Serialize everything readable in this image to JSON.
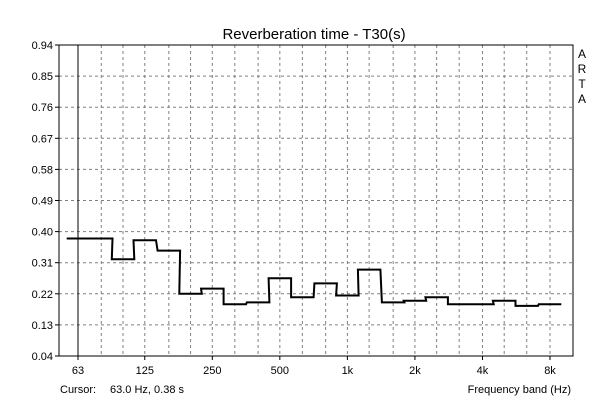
{
  "chart_data": {
    "type": "line",
    "title": "Reverberation time - T30(s)",
    "xlabel": "Frequency band (Hz)",
    "ylabel": "",
    "x_scale": "log",
    "y_ticks": [
      "0.94",
      "0.85",
      "0.76",
      "0.67",
      "0.58",
      "0.49",
      "0.40",
      "0.31",
      "0.22",
      "0.13",
      "0.04"
    ],
    "ylim": [
      0.04,
      0.94
    ],
    "x_ticks": [
      {
        "freq": 63,
        "label": "63"
      },
      {
        "freq": 125,
        "label": "125"
      },
      {
        "freq": 250,
        "label": "250"
      },
      {
        "freq": 500,
        "label": "500"
      },
      {
        "freq": 1000,
        "label": "1k"
      },
      {
        "freq": 2000,
        "label": "2k"
      },
      {
        "freq": 4000,
        "label": "4k"
      },
      {
        "freq": 8000,
        "label": "8k"
      }
    ],
    "grid": true,
    "step_style": "third-octave",
    "series": [
      {
        "color": "#000000",
        "bands": [
          50,
          63,
          80,
          100,
          125,
          160,
          200,
          250,
          315,
          400,
          500,
          630,
          800,
          1000,
          1250,
          1600,
          2000,
          2500,
          3150,
          4000,
          5000,
          6300,
          8000
        ],
        "values": [
          0.38,
          0.38,
          0.38,
          0.32,
          0.375,
          0.345,
          0.22,
          0.235,
          0.19,
          0.195,
          0.265,
          0.21,
          0.25,
          0.215,
          0.29,
          0.195,
          0.2,
          0.21,
          0.19,
          0.19,
          0.2,
          0.185,
          0.19
        ]
      }
    ],
    "cursor": {
      "freq": 63
    }
  },
  "cursor_readout": {
    "label": "Cursor:",
    "value": "63.0 Hz, 0.38 s"
  },
  "brand_letters": [
    "A",
    "R",
    "T",
    "A"
  ],
  "colors": {
    "grid": "#808080",
    "axis": "#000000",
    "trace": "#000000",
    "cursor": "#000000"
  }
}
